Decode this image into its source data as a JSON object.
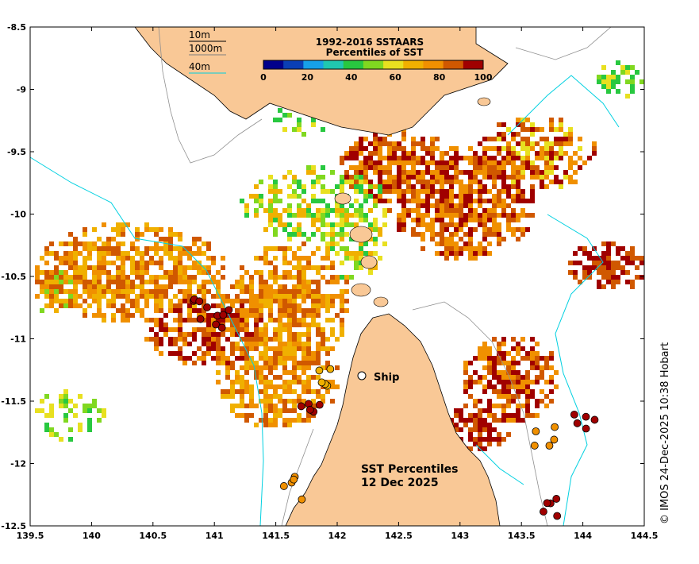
{
  "title": {
    "line1": "1992-2016 SSTAARS",
    "line2": "Percentiles of SST"
  },
  "legend": {
    "contours": [
      "10m",
      "1000m",
      "40m"
    ],
    "contour_colors": [
      "#000000",
      "#808080",
      "#00d0e0"
    ],
    "colorbar_ticks": [
      "0",
      "20",
      "40",
      "60",
      "80",
      "100"
    ],
    "colorbar_colors": [
      "#00008b",
      "#0a3fb5",
      "#17a0e8",
      "#20c8b0",
      "#28c840",
      "#80d820",
      "#e8e020",
      "#f0b000",
      "#f09000",
      "#d05800",
      "#a00000"
    ]
  },
  "labels": {
    "ship": "Ship",
    "product": "SST Percentiles",
    "date": "12 Dec 2025",
    "credit": "© IMOS 24-Dec-2025 10:38 Hobart"
  },
  "axes": {
    "x_ticks": [
      "139.5",
      "140",
      "140.5",
      "141",
      "141.5",
      "142",
      "142.5",
      "143",
      "143.5",
      "144",
      "144.5"
    ],
    "y_ticks": [
      "-8.5",
      "-9",
      "-9.5",
      "-10",
      "-10.5",
      "-11",
      "-11.5",
      "-12",
      "-12.5"
    ],
    "lon_range": [
      139.5,
      144.5
    ],
    "lat_range": [
      -12.5,
      -8.5
    ]
  },
  "colors": {
    "land": "#f9c896",
    "ocean": "#ffffff",
    "isobath_40m": "#00d0e0",
    "isobath_1000m": "#909090"
  },
  "markers": {
    "ship_position": [
      142.2,
      -11.3
    ],
    "buoy_clusters": [
      {
        "lon": 140.9,
        "lat": -10.75,
        "color": "#a00000"
      },
      {
        "lon": 141.1,
        "lat": -10.85,
        "color": "#a00000"
      },
      {
        "lon": 141.9,
        "lat": -11.3,
        "color": "#f0b000"
      },
      {
        "lon": 141.8,
        "lat": -11.6,
        "color": "#a00000"
      },
      {
        "lon": 143.7,
        "lat": -11.8,
        "color": "#f09000"
      },
      {
        "lon": 144.0,
        "lat": -11.65,
        "color": "#a00000"
      },
      {
        "lon": 141.65,
        "lat": -12.2,
        "color": "#f09000"
      },
      {
        "lon": 143.75,
        "lat": -12.35,
        "color": "#a00000"
      }
    ]
  }
}
